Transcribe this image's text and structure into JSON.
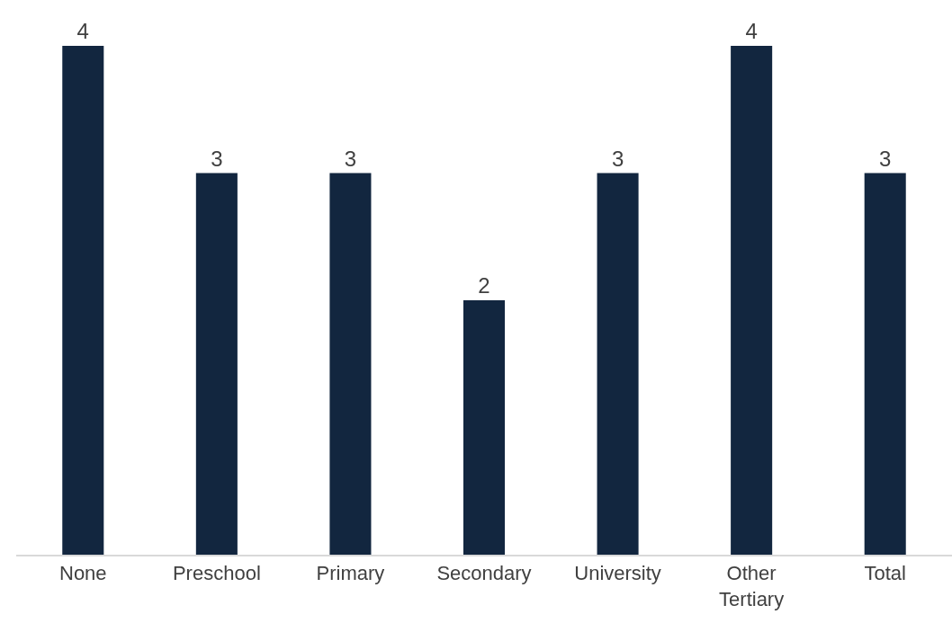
{
  "chart_data": {
    "type": "bar",
    "categories": [
      "None",
      "Preschool",
      "Primary",
      "Secondary",
      "University",
      "Other Tertiary",
      "Total"
    ],
    "values": [
      4,
      3,
      3,
      2,
      3,
      4,
      3
    ],
    "color": "#12263f",
    "data_labels": true
  }
}
